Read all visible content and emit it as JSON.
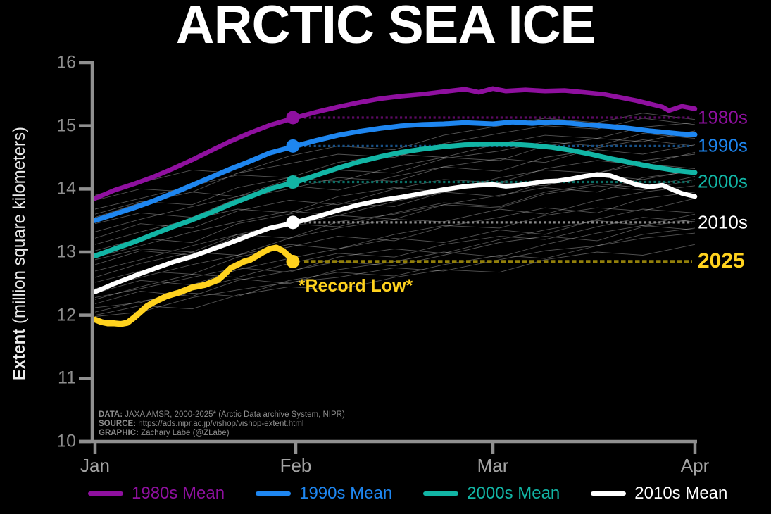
{
  "title": "ARCTIC SEA ICE",
  "y_axis": {
    "label_bold": "Extent",
    "label_rest": " (million square kilometers)",
    "ticks": [
      "16",
      "15",
      "14",
      "13",
      "12",
      "11",
      "10"
    ],
    "tick_values": [
      16,
      15,
      14,
      13,
      12,
      11,
      10
    ]
  },
  "x_axis": {
    "ticks": [
      "Jan",
      "Feb",
      "Mar",
      "Apr"
    ],
    "tick_days": [
      0,
      31,
      59,
      90
    ]
  },
  "annotation": {
    "record_low": "*Record Low*"
  },
  "source": {
    "lines": [
      {
        "label": "DATA:",
        "text": " JAXA AMSR, 2000-2025* (Arctic Data archive System, NIPR)"
      },
      {
        "label": "SOURCE:",
        "text": " https://ads.nipr.ac.jp/vishop/vishop-extent.html"
      },
      {
        "label": "GRAPHIC:",
        "text": " Zachary Labe (@ZLabe)"
      }
    ]
  },
  "legend": {
    "items": [
      {
        "id": "1980s",
        "label": "1980s Mean",
        "color": "#8f109f"
      },
      {
        "id": "1990s",
        "label": "1990s Mean",
        "color": "#1e86f0"
      },
      {
        "id": "2000s",
        "label": "2000s Mean",
        "color": "#12b5a5"
      },
      {
        "id": "2010s",
        "label": "2010s Mean",
        "color": "#ffffff"
      }
    ]
  },
  "chart_data": {
    "type": "line",
    "title": "ARCTIC SEA ICE",
    "xlabel": "",
    "ylabel": "Extent (million square kilometers)",
    "ylim": [
      10,
      16
    ],
    "x_unit": "day of year (Jan 1 = 0)",
    "x_range_days": [
      0,
      90
    ],
    "grid": false,
    "legend_position": "bottom",
    "series": [
      {
        "name": "1980s Mean",
        "right_label": "1980s",
        "bold_label": false,
        "color": "#8f109f",
        "dim_color": "#5a0a62",
        "width": 6.5,
        "marker_day": 31,
        "marker_value": 15.13,
        "days": [
          0,
          3,
          6,
          9,
          12,
          15,
          18,
          21,
          24,
          27,
          31,
          34,
          37,
          40,
          43,
          46,
          49,
          52,
          55,
          57,
          59,
          61,
          64,
          67,
          70,
          73,
          76,
          79,
          81,
          83,
          85,
          86,
          88,
          90
        ],
        "values": [
          13.85,
          13.98,
          14.08,
          14.19,
          14.32,
          14.46,
          14.61,
          14.76,
          14.89,
          15.01,
          15.13,
          15.22,
          15.3,
          15.37,
          15.43,
          15.47,
          15.5,
          15.54,
          15.58,
          15.53,
          15.59,
          15.55,
          15.57,
          15.55,
          15.56,
          15.53,
          15.5,
          15.44,
          15.4,
          15.35,
          15.3,
          15.24,
          15.31,
          15.27
        ]
      },
      {
        "name": "1990s Mean",
        "right_label": "1990s",
        "bold_label": false,
        "color": "#1e86f0",
        "dim_color": "#174f85",
        "width": 7,
        "marker_day": 31,
        "marker_value": 14.68,
        "days": [
          0,
          3,
          6,
          9,
          12,
          15,
          18,
          21,
          24,
          27,
          31,
          34,
          37,
          40,
          43,
          46,
          49,
          52,
          55,
          59,
          62,
          65,
          68,
          71,
          74,
          77,
          80,
          83,
          86,
          88,
          90
        ],
        "values": [
          13.5,
          13.6,
          13.7,
          13.81,
          13.93,
          14.06,
          14.19,
          14.32,
          14.44,
          14.57,
          14.68,
          14.77,
          14.85,
          14.91,
          14.96,
          15.0,
          15.02,
          15.03,
          15.05,
          15.03,
          15.06,
          15.04,
          15.06,
          15.04,
          15.01,
          14.99,
          14.96,
          14.92,
          14.89,
          14.87,
          14.86
        ]
      },
      {
        "name": "2000s Mean",
        "right_label": "2000s",
        "bold_label": false,
        "color": "#12b5a5",
        "dim_color": "#0b6e64",
        "width": 7,
        "marker_day": 31,
        "marker_value": 14.11,
        "days": [
          0,
          3,
          6,
          9,
          12,
          15,
          18,
          21,
          24,
          27,
          31,
          34,
          37,
          40,
          43,
          46,
          49,
          52,
          55,
          59,
          62,
          65,
          68,
          71,
          74,
          77,
          80,
          83,
          86,
          88,
          90
        ],
        "values": [
          12.94,
          13.05,
          13.16,
          13.28,
          13.4,
          13.51,
          13.63,
          13.76,
          13.88,
          14.0,
          14.11,
          14.22,
          14.33,
          14.43,
          14.51,
          14.58,
          14.63,
          14.67,
          14.7,
          14.71,
          14.71,
          14.69,
          14.66,
          14.61,
          14.55,
          14.48,
          14.42,
          14.36,
          14.31,
          14.28,
          14.26
        ]
      },
      {
        "name": "2010s Mean",
        "right_label": "2010s",
        "bold_label": false,
        "color": "#ffffff",
        "dim_color": "#8a8a8a",
        "width": 6.5,
        "marker_day": 31,
        "marker_value": 13.47,
        "days": [
          0,
          3,
          6,
          9,
          12,
          15,
          18,
          21,
          24,
          27,
          31,
          34,
          37,
          40,
          43,
          46,
          49,
          52,
          55,
          57,
          59,
          61,
          63,
          65,
          67,
          69,
          71,
          73,
          75,
          77,
          79,
          81,
          83,
          85,
          87,
          88,
          90
        ],
        "values": [
          12.37,
          12.5,
          12.62,
          12.73,
          12.84,
          12.93,
          13.04,
          13.15,
          13.27,
          13.38,
          13.47,
          13.56,
          13.66,
          13.75,
          13.82,
          13.87,
          13.93,
          13.99,
          14.04,
          14.06,
          14.07,
          14.04,
          14.06,
          14.09,
          14.12,
          14.13,
          14.16,
          14.2,
          14.23,
          14.21,
          14.14,
          14.07,
          14.03,
          14.06,
          13.97,
          13.93,
          13.88
        ]
      },
      {
        "name": "2025",
        "right_label": "2025",
        "bold_label": true,
        "color": "#ffd21e",
        "dim_color": "#93800a",
        "width": 8.5,
        "marker_day": 31,
        "marker_value": 12.85,
        "days": [
          0,
          1,
          2,
          3,
          4,
          5,
          6,
          7,
          8,
          9,
          10,
          11,
          12,
          13,
          14,
          15,
          16,
          17,
          18,
          19,
          20,
          21,
          22,
          23,
          24,
          25,
          26,
          27,
          28,
          29,
          30,
          31
        ],
        "values": [
          11.93,
          11.89,
          11.87,
          11.87,
          11.86,
          11.88,
          11.96,
          12.05,
          12.14,
          12.2,
          12.25,
          12.3,
          12.33,
          12.36,
          12.4,
          12.44,
          12.46,
          12.48,
          12.52,
          12.56,
          12.65,
          12.75,
          12.8,
          12.85,
          12.88,
          12.94,
          13.0,
          13.05,
          13.07,
          13.02,
          12.93,
          12.85
        ]
      }
    ],
    "background_years": {
      "label": "individual years 2000-2025",
      "color": "rgba(255,255,255,0.33)",
      "width": 0.9,
      "days": [
        0,
        7,
        15,
        22,
        30,
        37,
        45,
        52,
        60,
        67,
        75,
        82,
        90
      ],
      "series": [
        [
          11.98,
          12.05,
          12.28,
          12.4,
          12.52,
          12.6,
          12.75,
          12.7,
          12.88,
          13.02,
          13.1,
          13.22,
          13.3
        ],
        [
          12.05,
          12.22,
          12.35,
          12.3,
          12.55,
          12.68,
          12.62,
          12.8,
          12.95,
          12.9,
          13.1,
          13.28,
          13.38
        ],
        [
          12.12,
          12.2,
          12.42,
          12.58,
          12.5,
          12.72,
          12.85,
          13.0,
          12.92,
          13.12,
          13.3,
          13.42,
          13.35
        ],
        [
          12.18,
          12.38,
          12.3,
          12.55,
          12.7,
          12.85,
          12.78,
          12.95,
          13.15,
          13.25,
          13.18,
          13.4,
          13.52
        ],
        [
          12.28,
          12.42,
          12.6,
          12.75,
          12.68,
          12.92,
          13.05,
          12.98,
          13.2,
          13.35,
          13.5,
          13.42,
          13.6
        ],
        [
          12.35,
          12.55,
          12.48,
          12.72,
          12.9,
          13.05,
          13.22,
          13.15,
          13.35,
          13.28,
          13.52,
          13.68,
          13.62
        ],
        [
          12.42,
          12.6,
          12.8,
          12.95,
          13.12,
          13.05,
          13.28,
          13.42,
          13.38,
          13.58,
          13.7,
          13.65,
          13.85
        ],
        [
          12.52,
          12.7,
          12.65,
          12.92,
          13.08,
          13.25,
          13.18,
          13.4,
          13.55,
          13.7,
          13.62,
          13.85,
          13.95
        ],
        [
          12.6,
          12.82,
          13.0,
          12.95,
          13.22,
          13.38,
          13.52,
          13.48,
          13.68,
          13.6,
          13.82,
          13.95,
          14.05
        ],
        [
          12.7,
          12.88,
          13.1,
          13.28,
          13.22,
          13.48,
          13.6,
          13.75,
          13.7,
          13.92,
          14.05,
          13.98,
          14.15
        ],
        [
          12.8,
          13.02,
          12.95,
          13.25,
          13.42,
          13.58,
          13.52,
          13.75,
          13.9,
          14.02,
          13.95,
          14.18,
          14.28
        ],
        [
          12.92,
          13.1,
          13.32,
          13.48,
          13.65,
          13.58,
          13.8,
          13.95,
          13.88,
          14.1,
          14.22,
          14.15,
          14.3
        ],
        [
          13.02,
          13.22,
          13.15,
          13.45,
          13.6,
          13.78,
          13.72,
          13.95,
          14.1,
          14.05,
          14.25,
          14.4,
          14.32
        ],
        [
          13.12,
          13.32,
          13.52,
          13.68,
          13.62,
          13.88,
          14.02,
          13.95,
          14.18,
          14.3,
          14.25,
          14.45,
          14.55
        ],
        [
          13.22,
          13.45,
          13.38,
          13.65,
          13.82,
          13.75,
          14.0,
          14.15,
          14.1,
          14.32,
          14.45,
          14.38,
          14.58
        ],
        [
          13.32,
          13.52,
          13.72,
          13.88,
          14.05,
          13.98,
          14.2,
          14.35,
          14.28,
          14.5,
          14.62,
          14.55,
          14.7
        ],
        [
          13.45,
          13.62,
          13.55,
          13.85,
          14.0,
          14.18,
          14.12,
          14.35,
          14.48,
          14.42,
          14.65,
          14.78,
          14.68
        ],
        [
          13.55,
          13.78,
          13.95,
          13.88,
          14.15,
          14.3,
          14.25,
          14.48,
          14.6,
          14.75,
          14.68,
          14.88,
          14.8
        ],
        [
          13.68,
          13.85,
          14.05,
          14.22,
          14.18,
          14.42,
          14.55,
          14.5,
          14.72,
          14.85,
          14.8,
          14.98,
          15.05
        ],
        [
          13.82,
          14.0,
          13.95,
          14.25,
          14.4,
          14.55,
          14.5,
          14.72,
          14.88,
          15.0,
          14.95,
          15.12,
          15.02
        ],
        [
          13.9,
          14.1,
          14.3,
          14.25,
          14.52,
          14.68,
          14.62,
          14.85,
          15.0,
          15.12,
          15.05,
          15.2,
          15.1
        ],
        [
          12.0,
          12.15,
          12.1,
          12.32,
          12.45,
          12.4,
          12.6,
          12.72,
          12.68,
          12.88,
          13.0,
          12.95,
          13.12
        ],
        [
          12.25,
          12.45,
          12.65,
          12.6,
          12.82,
          12.98,
          12.92,
          13.12,
          13.25,
          13.2,
          13.4,
          13.55,
          13.48
        ],
        [
          12.88,
          13.05,
          13.0,
          13.28,
          13.45,
          13.4,
          13.62,
          13.78,
          13.72,
          13.95,
          14.08,
          14.02,
          14.2
        ],
        [
          13.6,
          13.8,
          13.75,
          14.02,
          14.18,
          14.12,
          14.35,
          14.5,
          14.45,
          14.68,
          14.8,
          14.75,
          14.92
        ]
      ]
    },
    "axis_colors": {
      "spine": "#909090",
      "y_tick_label": "#8f8f8f",
      "x_tick_label": "#a3a3a3"
    }
  }
}
